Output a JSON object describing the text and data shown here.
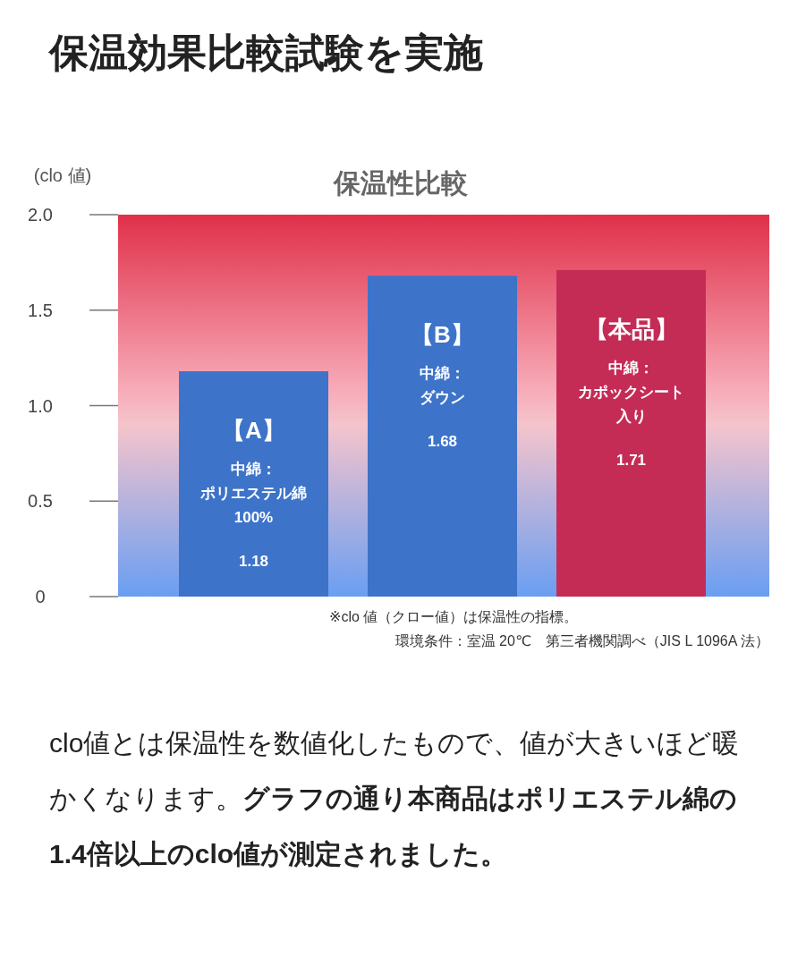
{
  "chart_data": {
    "type": "bar",
    "title": "保温効果比較試験を実施",
    "subtitle": "保温性比較",
    "ylabel": "(clo 値)",
    "categories": [
      "【A】",
      "【B】",
      "【本品】"
    ],
    "values": [
      1.18,
      1.68,
      1.71
    ],
    "colors": [
      "#3d73c9",
      "#3d73c9",
      "#c42c56"
    ],
    "data_labels": true,
    "ylim": [
      0,
      2
    ],
    "yticks": [
      0,
      0.5,
      {
        "value": 1,
        "label": "1.0"
      },
      1.5,
      {
        "value": 2,
        "label": "2.0"
      }
    ],
    "grid": false,
    "annotations": [
      "※clo 値（クロー値）は保温性の指標。",
      "環境条件：室温 20℃　第三者機関調べ（JIS L 1096A 法）",
      "clo値とは保温性を数値化したもので、値が大きいほど暖かくなります。",
      "グラフの通り本商品はポリエステル綿の1.4倍以上のclo値が測定されました。",
      "中綿：",
      "ポリエステル綿",
      "100%",
      "中綿：",
      "ダウン",
      "中綿：",
      "カポックシート",
      "入り"
    ]
  }
}
